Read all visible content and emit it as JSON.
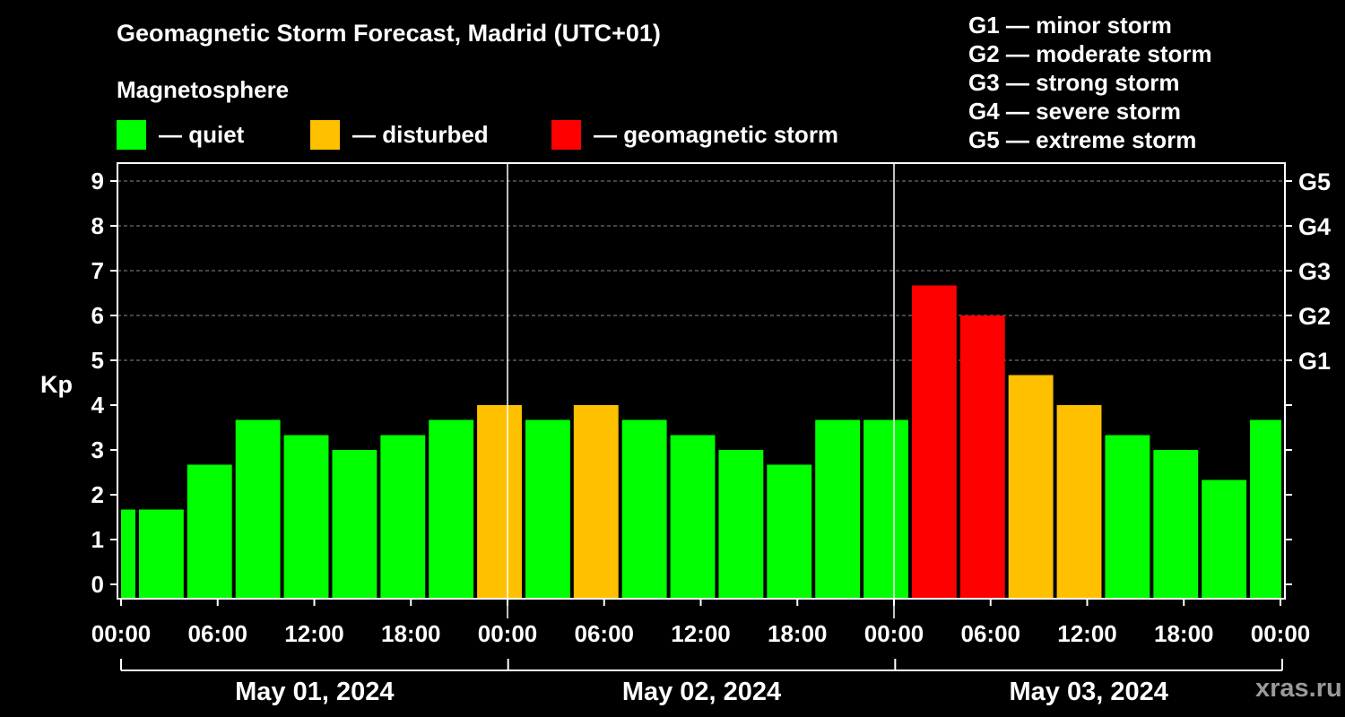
{
  "header": {
    "title": "Geomagnetic Storm Forecast, Madrid (UTC+01)",
    "subtitle": "Magnetosphere"
  },
  "legend": [
    {
      "label": "— quiet",
      "color": "#00ff00"
    },
    {
      "label": "— disturbed",
      "color": "#ffc000"
    },
    {
      "label": "— geomagnetic storm",
      "color": "#ff0000"
    }
  ],
  "g_scale": [
    "G1 — minor storm",
    "G2 — moderate storm",
    "G3 — strong storm",
    "G4 — severe storm",
    "G5 — extreme storm"
  ],
  "watermark": "xras.ru",
  "chart_data": {
    "type": "bar",
    "ylabel": "Kp",
    "ylim": [
      0,
      9
    ],
    "y_ticks": [
      "0",
      "1",
      "2",
      "3",
      "4",
      "5",
      "6",
      "7",
      "8",
      "9"
    ],
    "right_axis_labels": [
      {
        "label": "G1",
        "kp": 5
      },
      {
        "label": "G2",
        "kp": 6
      },
      {
        "label": "G3",
        "kp": 7
      },
      {
        "label": "G4",
        "kp": 8
      },
      {
        "label": "G5",
        "kp": 9
      }
    ],
    "x_range": [
      "2024-05-01 00:00",
      "2024-05-04 00:00"
    ],
    "x_tick_labels": [
      "00:00",
      "06:00",
      "12:00",
      "18:00",
      "00:00",
      "06:00",
      "12:00",
      "18:00",
      "00:00",
      "06:00",
      "12:00",
      "18:00",
      "00:00"
    ],
    "days": [
      "May 01, 2024",
      "May 02, 2024",
      "May 03, 2024"
    ],
    "grid": "horizontal dashed at G levels",
    "bars": [
      {
        "start": "2024-04-30 22:00",
        "end": "2024-05-01 01:00",
        "kp": 1.67,
        "level": "quiet"
      },
      {
        "start": "2024-05-01 01:00",
        "end": "2024-05-01 04:00",
        "kp": 1.67,
        "level": "quiet"
      },
      {
        "start": "2024-05-01 04:00",
        "end": "2024-05-01 07:00",
        "kp": 2.67,
        "level": "quiet"
      },
      {
        "start": "2024-05-01 07:00",
        "end": "2024-05-01 10:00",
        "kp": 3.67,
        "level": "quiet"
      },
      {
        "start": "2024-05-01 10:00",
        "end": "2024-05-01 13:00",
        "kp": 3.33,
        "level": "quiet"
      },
      {
        "start": "2024-05-01 13:00",
        "end": "2024-05-01 16:00",
        "kp": 3.0,
        "level": "quiet"
      },
      {
        "start": "2024-05-01 16:00",
        "end": "2024-05-01 19:00",
        "kp": 3.33,
        "level": "quiet"
      },
      {
        "start": "2024-05-01 19:00",
        "end": "2024-05-01 22:00",
        "kp": 3.67,
        "level": "quiet"
      },
      {
        "start": "2024-05-01 22:00",
        "end": "2024-05-02 01:00",
        "kp": 4.0,
        "level": "disturbed"
      },
      {
        "start": "2024-05-02 01:00",
        "end": "2024-05-02 04:00",
        "kp": 3.67,
        "level": "quiet"
      },
      {
        "start": "2024-05-02 04:00",
        "end": "2024-05-02 07:00",
        "kp": 4.0,
        "level": "disturbed"
      },
      {
        "start": "2024-05-02 07:00",
        "end": "2024-05-02 10:00",
        "kp": 3.67,
        "level": "quiet"
      },
      {
        "start": "2024-05-02 10:00",
        "end": "2024-05-02 13:00",
        "kp": 3.33,
        "level": "quiet"
      },
      {
        "start": "2024-05-02 13:00",
        "end": "2024-05-02 16:00",
        "kp": 3.0,
        "level": "quiet"
      },
      {
        "start": "2024-05-02 16:00",
        "end": "2024-05-02 19:00",
        "kp": 2.67,
        "level": "quiet"
      },
      {
        "start": "2024-05-02 19:00",
        "end": "2024-05-02 22:00",
        "kp": 3.67,
        "level": "quiet"
      },
      {
        "start": "2024-05-02 22:00",
        "end": "2024-05-03 01:00",
        "kp": 3.67,
        "level": "quiet"
      },
      {
        "start": "2024-05-03 01:00",
        "end": "2024-05-03 04:00",
        "kp": 6.67,
        "level": "storm"
      },
      {
        "start": "2024-05-03 04:00",
        "end": "2024-05-03 07:00",
        "kp": 6.0,
        "level": "storm"
      },
      {
        "start": "2024-05-03 07:00",
        "end": "2024-05-03 10:00",
        "kp": 4.67,
        "level": "disturbed"
      },
      {
        "start": "2024-05-03 10:00",
        "end": "2024-05-03 13:00",
        "kp": 4.0,
        "level": "disturbed"
      },
      {
        "start": "2024-05-03 13:00",
        "end": "2024-05-03 16:00",
        "kp": 3.33,
        "level": "quiet"
      },
      {
        "start": "2024-05-03 16:00",
        "end": "2024-05-03 19:00",
        "kp": 3.0,
        "level": "quiet"
      },
      {
        "start": "2024-05-03 19:00",
        "end": "2024-05-03 22:00",
        "kp": 2.33,
        "level": "quiet"
      },
      {
        "start": "2024-05-03 22:00",
        "end": "2024-05-04 01:00",
        "kp": 3.67,
        "level": "quiet"
      }
    ],
    "level_colors": {
      "quiet": "#00ff00",
      "disturbed": "#ffc000",
      "storm": "#ff0000"
    }
  }
}
